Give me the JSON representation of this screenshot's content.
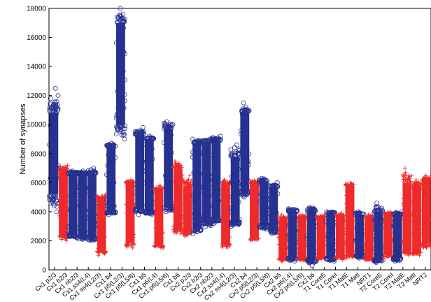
{
  "chart_data": {
    "type": "scatter",
    "title": "",
    "xlabel": "",
    "ylabel": "Number of synapses",
    "ylim": [
      0,
      18000
    ],
    "yticks": [
      0,
      2000,
      4000,
      6000,
      8000,
      10000,
      12000,
      14000,
      16000,
      18000
    ],
    "ytick_labels": [
      "0",
      "2000",
      "4000",
      "6000",
      "8000",
      "10000",
      "12000",
      "14000",
      "16000",
      "18000"
    ],
    "grid": false,
    "legend": "none",
    "colors": {
      "excitatory": "#27318f",
      "inhibitory": "#ee2a2a"
    },
    "markers": {
      "excitatory": "circle",
      "inhibitory": "plus"
    },
    "categories": [
      {
        "label": "Cx1 p2/3",
        "kind": "excitatory",
        "min": 4000,
        "max": 12500,
        "low": 5200,
        "high": 10800
      },
      {
        "label": "Cx1 b2/3",
        "kind": "inhibitory",
        "min": 2000,
        "max": 7200,
        "low": 2400,
        "high": 6900
      },
      {
        "label": "Cx1 nb2/3",
        "kind": "excitatory",
        "min": 2200,
        "max": 6800,
        "low": 2400,
        "high": 6600
      },
      {
        "label": "Cx1 ss4(L4)",
        "kind": "excitatory",
        "min": 2100,
        "max": 6800,
        "low": 2300,
        "high": 6600
      },
      {
        "label": "Cx1 ss4(L2/3)",
        "kind": "excitatory",
        "min": 2000,
        "max": 7000,
        "low": 2200,
        "high": 6600
      },
      {
        "label": "Cx1 b4",
        "kind": "inhibitory",
        "min": 1000,
        "max": 5200,
        "low": 1300,
        "high": 4900
      },
      {
        "label": "Cx1 nb4",
        "kind": "excitatory",
        "min": 3800,
        "max": 8700,
        "low": 4000,
        "high": 8500
      },
      {
        "label": "Cx1 p5(L2/3)",
        "kind": "excitatory",
        "min": 9000,
        "max": 18000,
        "low": 10000,
        "high": 17000
      },
      {
        "label": "Cx1 p5(L5/6)",
        "kind": "inhibitory",
        "min": 1500,
        "max": 6200,
        "low": 1800,
        "high": 6000
      },
      {
        "label": "Cx1 b5",
        "kind": "excitatory",
        "min": 3800,
        "max": 9800,
        "low": 4200,
        "high": 9300
      },
      {
        "label": "Cx1 nb5",
        "kind": "excitatory",
        "min": 3800,
        "max": 9200,
        "low": 4000,
        "high": 9000
      },
      {
        "label": "Cx1 p6(L4)",
        "kind": "inhibitory",
        "min": 1500,
        "max": 5800,
        "low": 1700,
        "high": 5500
      },
      {
        "label": "Cx1 p6(L5/6)",
        "kind": "excitatory",
        "min": 4000,
        "max": 10200,
        "low": 4300,
        "high": 9700
      },
      {
        "label": "Cx1 b6",
        "kind": "inhibitory",
        "min": 2500,
        "max": 7500,
        "low": 2800,
        "high": 7000
      },
      {
        "label": "Cx1 nb6",
        "kind": "inhibitory",
        "min": 2300,
        "max": 6500,
        "low": 2600,
        "high": 5800
      },
      {
        "label": "Cx2 p2/3",
        "kind": "excitatory",
        "min": 2500,
        "max": 9000,
        "low": 2800,
        "high": 8700
      },
      {
        "label": "Cx2 b2/3",
        "kind": "excitatory",
        "min": 3000,
        "max": 9000,
        "low": 3300,
        "high": 8800
      },
      {
        "label": "Cx2 nb2/3",
        "kind": "excitatory",
        "min": 3200,
        "max": 9200,
        "low": 3500,
        "high": 8900
      },
      {
        "label": "Cx2 ss4(L4)",
        "kind": "inhibitory",
        "min": 1500,
        "max": 6200,
        "low": 1800,
        "high": 5900
      },
      {
        "label": "Cx2 ss4(L2/3)",
        "kind": "excitatory",
        "min": 3000,
        "max": 8600,
        "low": 3300,
        "high": 7800
      },
      {
        "label": "Cx2 b4",
        "kind": "excitatory",
        "min": 5000,
        "max": 11500,
        "low": 5400,
        "high": 10800
      },
      {
        "label": "Cx2 nb4",
        "kind": "inhibitory",
        "min": 2000,
        "max": 6200,
        "low": 2200,
        "high": 5900
      },
      {
        "label": "Cx2 p5(L2/3)",
        "kind": "excitatory",
        "min": 2800,
        "max": 6300,
        "low": 3000,
        "high": 6100
      },
      {
        "label": "Cx2 p5(L5/6)",
        "kind": "excitatory",
        "min": 2500,
        "max": 6000,
        "low": 2700,
        "high": 5700
      },
      {
        "label": "Cx2 b5",
        "kind": "inhibitory",
        "min": 600,
        "max": 3800,
        "low": 800,
        "high": 3500
      },
      {
        "label": "Cx2 nb5",
        "kind": "excitatory",
        "min": 600,
        "max": 4200,
        "low": 800,
        "high": 4000
      },
      {
        "label": "Cx2 p6(L4)",
        "kind": "inhibitory",
        "min": 600,
        "max": 3800,
        "low": 800,
        "high": 3600
      },
      {
        "label": "Cx2 p6(L5/6)",
        "kind": "excitatory",
        "min": 300,
        "max": 4300,
        "low": 700,
        "high": 4000
      },
      {
        "label": "Cx2 b6",
        "kind": "inhibitory",
        "min": 700,
        "max": 3800,
        "low": 900,
        "high": 3600
      },
      {
        "label": "Cx2 nb6",
        "kind": "excitatory",
        "min": 600,
        "max": 4000,
        "low": 800,
        "high": 3900
      },
      {
        "label": "T1 CoreE",
        "kind": "inhibitory",
        "min": 700,
        "max": 3900,
        "low": 900,
        "high": 3700
      },
      {
        "label": "T1 CoreI",
        "kind": "inhibitory",
        "min": 800,
        "max": 6000,
        "low": 1000,
        "high": 5800
      },
      {
        "label": "T1 MatE",
        "kind": "excitatory",
        "min": 800,
        "max": 4000,
        "low": 1000,
        "high": 3800
      },
      {
        "label": "T1 MatI",
        "kind": "inhibitory",
        "min": 600,
        "max": 3800,
        "low": 800,
        "high": 3600
      },
      {
        "label": "NRT1",
        "kind": "excitatory",
        "min": 500,
        "max": 4600,
        "low": 700,
        "high": 4000
      },
      {
        "label": "T2 CoreE",
        "kind": "inhibitory",
        "min": 800,
        "max": 4000,
        "low": 1000,
        "high": 3800
      },
      {
        "label": "T2 CoreI",
        "kind": "excitatory",
        "min": 600,
        "max": 4000,
        "low": 800,
        "high": 3800
      },
      {
        "label": "T2 MatE",
        "kind": "inhibitory",
        "min": 1000,
        "max": 7000,
        "low": 1300,
        "high": 6000
      },
      {
        "label": "T2 MatI",
        "kind": "inhibitory",
        "min": 1000,
        "max": 6200,
        "low": 1200,
        "high": 5800
      },
      {
        "label": "NRT2",
        "kind": "inhibitory",
        "min": 1500,
        "max": 6500,
        "low": 1800,
        "high": 6200
      }
    ],
    "visible_category_labels": [
      "Cx1 p2/3",
      "Cx1 b2/3",
      "Cx1 nb2/3",
      "Cx1 ss4(L4)",
      "Cx1 ss4(L2/3)",
      "Cx1 b4",
      "Cx1 p5(L2/3)",
      "Cx1 p5(L5/6)",
      "Cx1 b5",
      "Cx1 p6(L4)",
      "Cx1 p6(L5/6)",
      "Cx1 b6",
      "Cx2 p2/3",
      "Cx2 b2/3",
      "Cx2 nb2/3",
      "Cx2 ss4(L4)",
      "Cx2 ss4(L2/3)",
      "Cx2 b4",
      "Cx2 p5(L2/3)",
      "Cx2 p5(L5/6)",
      "Cx2 b5",
      "Cx2 p6(L4)",
      "Cx2 p6(L5/6)",
      "Cx2 b6",
      "T1 CoreE",
      "T1 CoreI",
      "T1 MatE",
      "T1 MatI",
      "NRT1",
      "T2 CoreE",
      "T2 CoreI",
      "T2 MatE",
      "T2 MatI",
      "NRT2"
    ]
  }
}
